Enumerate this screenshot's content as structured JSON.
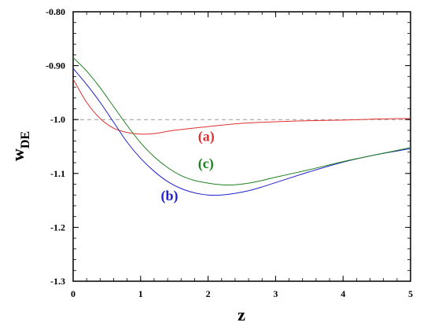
{
  "chart_data": {
    "type": "line",
    "title": "",
    "xlabel": "z",
    "ylabel_main": "w",
    "ylabel_sub": "DE",
    "xlim": [
      0,
      5
    ],
    "ylim": [
      -1.3,
      -0.8
    ],
    "xticks": [
      0,
      1,
      2,
      3,
      4,
      5
    ],
    "xtick_labels": [
      "0",
      "1",
      "2",
      "3",
      "4",
      "5"
    ],
    "yticks": [
      -0.8,
      -0.9,
      -1.0,
      -1.1,
      -1.2,
      -1.3
    ],
    "ytick_labels": [
      "-0.80",
      "-0.90",
      "-1.0",
      "-1.1",
      "-1.2",
      "-1.3"
    ],
    "reference_line": {
      "y": -1.0,
      "style": "dashed",
      "color": "#999999"
    },
    "grid": false,
    "legend": "none",
    "series": [
      {
        "label": "(a)",
        "color": "#e03030",
        "label_at": {
          "x": 1.85,
          "y": -1.04
        },
        "x": [
          0,
          0.2,
          0.4,
          0.6,
          0.8,
          1.0,
          1.2,
          1.5,
          2.0,
          2.5,
          3.0,
          3.5,
          4.0,
          4.5,
          5.0
        ],
        "y": [
          -0.925,
          -0.968,
          -0.998,
          -1.016,
          -1.024,
          -1.027,
          -1.026,
          -1.02,
          -1.013,
          -1.007,
          -1.004,
          -1.002,
          -1.001,
          -0.999,
          -0.998
        ]
      },
      {
        "label": "(b)",
        "color": "#2020d0",
        "label_at": {
          "x": 1.3,
          "y": -1.15
        },
        "x": [
          0,
          0.2,
          0.4,
          0.6,
          0.8,
          1.0,
          1.2,
          1.4,
          1.6,
          1.8,
          2.0,
          2.2,
          2.4,
          2.6,
          2.8,
          3.0,
          3.5,
          4.0,
          4.5,
          5.0
        ],
        "y": [
          -0.905,
          -0.935,
          -0.968,
          -1.005,
          -1.042,
          -1.072,
          -1.096,
          -1.115,
          -1.128,
          -1.136,
          -1.14,
          -1.14,
          -1.137,
          -1.132,
          -1.125,
          -1.117,
          -1.097,
          -1.079,
          -1.065,
          -1.054
        ]
      },
      {
        "label": "(c)",
        "color": "#208020",
        "label_at": {
          "x": 1.85,
          "y": -1.09
        },
        "x": [
          0,
          0.2,
          0.4,
          0.6,
          0.8,
          1.0,
          1.2,
          1.4,
          1.6,
          1.8,
          2.0,
          2.2,
          2.4,
          2.6,
          2.8,
          3.0,
          3.5,
          4.0,
          4.5,
          5.0
        ],
        "y": [
          -0.885,
          -0.91,
          -0.941,
          -0.976,
          -1.011,
          -1.043,
          -1.069,
          -1.089,
          -1.104,
          -1.113,
          -1.118,
          -1.121,
          -1.121,
          -1.118,
          -1.113,
          -1.107,
          -1.093,
          -1.078,
          -1.065,
          -1.052
        ]
      }
    ]
  }
}
